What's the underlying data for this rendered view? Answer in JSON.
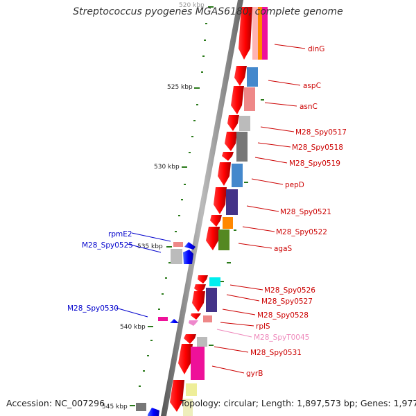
{
  "title": "Streptococcus pyogenes MGAS6180, complete genome",
  "footer": {
    "accession": "Accession: NC_007296",
    "topology": "Topology: circular; Length: 1,897,573 bp; Genes: 1,977"
  },
  "scale_labels": [
    "520 kbp",
    "525 kbp",
    "530 kbp",
    "535 kbp",
    "540 kbp",
    "545 kbp"
  ],
  "gene_labels_right": [
    "dinG",
    "aspC",
    "asnC",
    "M28_Spy0517",
    "M28_Spy0518",
    "M28_Spy0519",
    "pepD",
    "M28_Spy0521",
    "M28_Spy0522",
    "agaS",
    "M28_Spy0526",
    "M28_Spy0527",
    "M28_Spy0528",
    "rplS",
    "M28_SpyT0045",
    "M28_Spy0531",
    "gyrB"
  ],
  "gene_labels_left": [
    "rpmE2",
    "M28_Spy0525",
    "M28_Spy0530"
  ],
  "colors": {
    "label_red": "#cc0000",
    "label_blue": "#0000cc",
    "label_pink": "#ee88bb",
    "backbone": "#777777",
    "tick_green": "#2a7a1a",
    "forward_red": "#ff0000",
    "forward_blue": "#0000ff"
  }
}
